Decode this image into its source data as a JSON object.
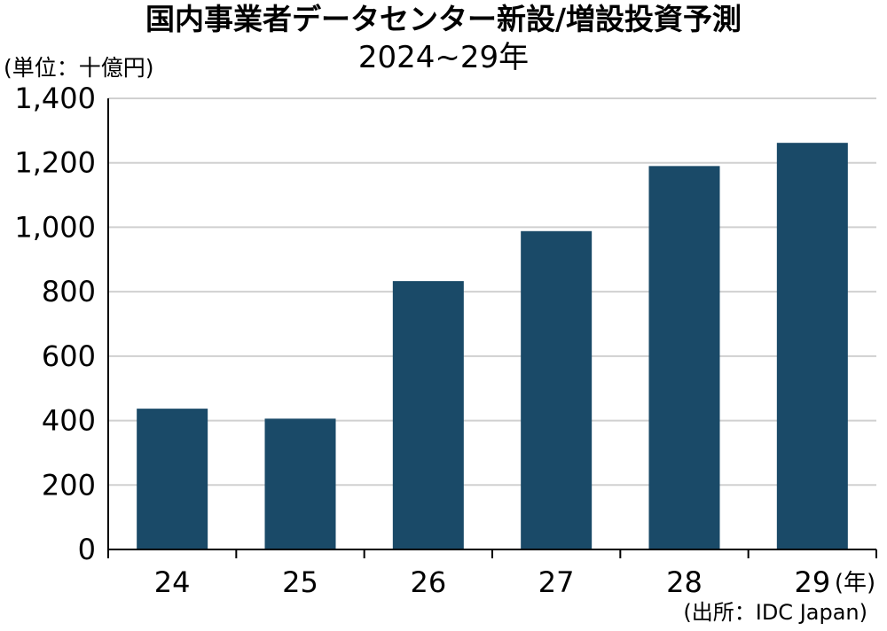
{
  "chart_data": {
    "type": "bar",
    "title": "国内事業者データセンター新設/増設投資予測",
    "subtitle": "2024~29年",
    "ylabel": "(単位：十億円)",
    "xunit": "(年)",
    "source": "(出所：IDC Japan)",
    "categories": [
      "24",
      "25",
      "26",
      "27",
      "28",
      "29"
    ],
    "values": [
      437,
      406,
      833,
      988,
      1190,
      1262
    ],
    "ylim": [
      0,
      1400
    ],
    "yticks": [
      0,
      200,
      400,
      600,
      800,
      1000,
      1200,
      1400
    ],
    "ytick_labels": [
      "0",
      "200",
      "400",
      "600",
      "800",
      "1,000",
      "1,200",
      "1,400"
    ],
    "grid": true,
    "bar_color": "#1a4a68",
    "grid_color": "#d0d0d0"
  }
}
